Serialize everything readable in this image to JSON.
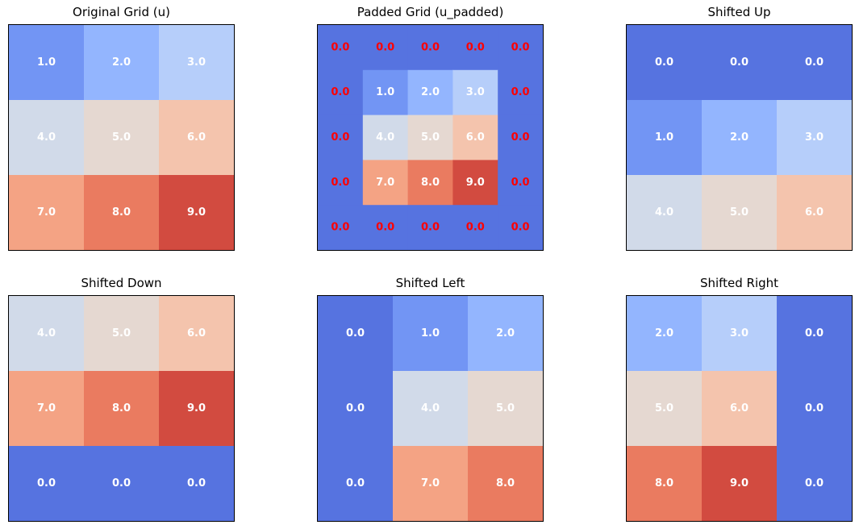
{
  "colors": {
    "value_0": "#5673e0",
    "value_1": "#7295f4",
    "value_2": "#93b5fe",
    "value_3": "#b6cefa",
    "value_4": "#d1dae9",
    "value_5": "#e5d8d1",
    "value_6": "#f4c4ad",
    "value_7": "#f4a384",
    "value_8": "#ea7b60",
    "value_9": "#d24b40",
    "label_light": "#ffffff",
    "label_padding": "#ff0000"
  },
  "chart_data": [
    {
      "type": "heatmap",
      "title": "Original Grid (u)",
      "colormap": "coolwarm",
      "vrange": [
        0,
        9
      ],
      "label_format": "0.0",
      "matrix": [
        [
          1,
          2,
          3
        ],
        [
          4,
          5,
          6
        ],
        [
          7,
          8,
          9
        ]
      ]
    },
    {
      "type": "heatmap",
      "title": "Padded Grid (u_padded)",
      "colormap": "coolwarm",
      "vrange": [
        0,
        9
      ],
      "label_format": "0.0",
      "padding_labels_red": true,
      "matrix": [
        [
          0,
          0,
          0,
          0,
          0
        ],
        [
          0,
          1,
          2,
          3,
          0
        ],
        [
          0,
          4,
          5,
          6,
          0
        ],
        [
          0,
          7,
          8,
          9,
          0
        ],
        [
          0,
          0,
          0,
          0,
          0
        ]
      ],
      "inner_cells_framed": true
    },
    {
      "type": "heatmap",
      "title": "Shifted Up",
      "colormap": "coolwarm",
      "vrange": [
        0,
        9
      ],
      "label_format": "0.0",
      "matrix": [
        [
          0,
          0,
          0
        ],
        [
          1,
          2,
          3
        ],
        [
          4,
          5,
          6
        ]
      ]
    },
    {
      "type": "heatmap",
      "title": "Shifted Down",
      "colormap": "coolwarm",
      "vrange": [
        0,
        9
      ],
      "label_format": "0.0",
      "matrix": [
        [
          4,
          5,
          6
        ],
        [
          7,
          8,
          9
        ],
        [
          0,
          0,
          0
        ]
      ]
    },
    {
      "type": "heatmap",
      "title": "Shifted Left",
      "colormap": "coolwarm",
      "vrange": [
        0,
        9
      ],
      "label_format": "0.0",
      "matrix": [
        [
          0,
          1,
          2
        ],
        [
          0,
          4,
          5
        ],
        [
          0,
          7,
          8
        ]
      ]
    },
    {
      "type": "heatmap",
      "title": "Shifted Right",
      "colormap": "coolwarm",
      "vrange": [
        0,
        9
      ],
      "label_format": "0.0",
      "matrix": [
        [
          2,
          3,
          0
        ],
        [
          5,
          6,
          0
        ],
        [
          8,
          9,
          0
        ]
      ]
    }
  ]
}
